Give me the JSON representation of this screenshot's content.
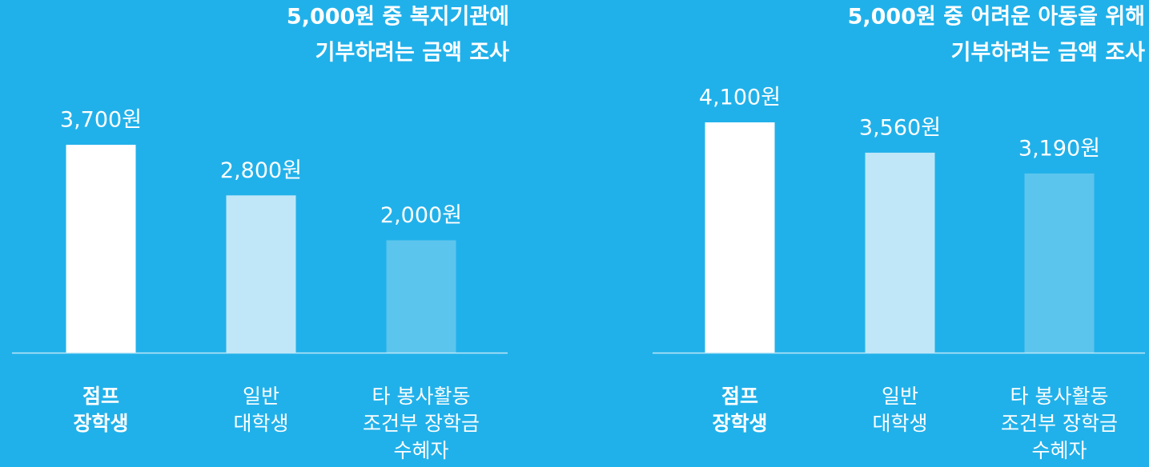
{
  "chart_data": [
    {
      "type": "bar",
      "title": [
        "5,000원 중 복지기관에",
        "기부하려는 금액 조사"
      ],
      "categories": [
        [
          "점프",
          "장학생"
        ],
        [
          "일반",
          "대학생"
        ],
        [
          "타 봉사활동",
          "조건부 장학금",
          "수혜자"
        ]
      ],
      "values": [
        3700,
        2800,
        2000
      ],
      "value_labels": [
        "3,700원",
        "2,800원",
        "2,000원"
      ],
      "colors": [
        "#ffffff",
        "#bfe7f8",
        "#5cc5ed"
      ],
      "ylim": [
        0,
        4100
      ]
    },
    {
      "type": "bar",
      "title": [
        "5,000원 중 어려운 아동을 위해",
        "기부하려는 금액 조사"
      ],
      "categories": [
        [
          "점프",
          "장학생"
        ],
        [
          "일반",
          "대학생"
        ],
        [
          "타 봉사활동",
          "조건부 장학금",
          "수혜자"
        ]
      ],
      "values": [
        4100,
        3560,
        3190
      ],
      "value_labels": [
        "4,100원",
        "3,560원",
        "3,190원"
      ],
      "colors": [
        "#ffffff",
        "#bfe7f8",
        "#5cc5ed"
      ],
      "ylim": [
        0,
        4100
      ]
    }
  ]
}
